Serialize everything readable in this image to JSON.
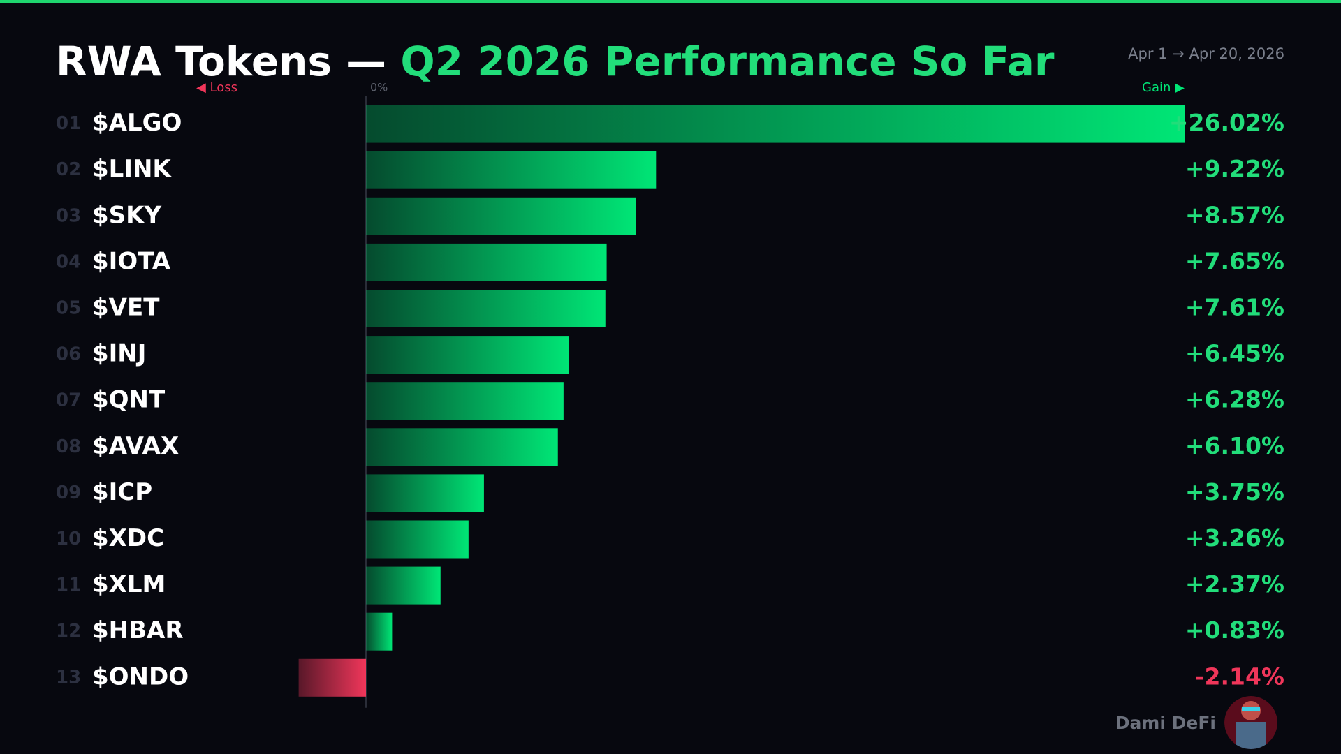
{
  "chart_data": {
    "type": "bar",
    "orientation": "horizontal",
    "title": "RWA Tokens — ",
    "subtitle": "Q2 2026 Performance So Far",
    "date_range": "Apr 1 → Apr 20, 2026",
    "loss_label": "◀ Loss",
    "gain_label": "Gain ▶",
    "watermark": "Dami DeFi",
    "ranks": [
      "01",
      "02",
      "03",
      "04",
      "05",
      "06",
      "07",
      "08",
      "09",
      "10",
      "11",
      "12",
      "13"
    ],
    "categories": [
      "$ALGO",
      "$LINK",
      "$SKY",
      "$IOTA",
      "$VET",
      "$INJ",
      "$QNT",
      "$AVAX",
      "$ICP",
      "$XDC",
      "$XLM",
      "$HBAR",
      "$ONDO"
    ],
    "values": [
      26.02,
      9.22,
      8.57,
      7.65,
      7.61,
      6.45,
      6.28,
      6.1,
      3.75,
      3.26,
      2.37,
      0.83,
      -2.14
    ],
    "value_labels": [
      "+26.02%",
      "+9.22%",
      "+8.57%",
      "+7.65%",
      "+7.61%",
      "+6.45%",
      "+6.28%",
      "+6.10%",
      "+3.75%",
      "+3.26%",
      "+2.37%",
      "+0.83%",
      "-2.14%"
    ],
    "color": "#00e676",
    "negative_color": "#f0365a",
    "xlim": [
      -5,
      26.02
    ],
    "xticks": [
      {
        "value": 0,
        "label": "0%"
      }
    ]
  }
}
